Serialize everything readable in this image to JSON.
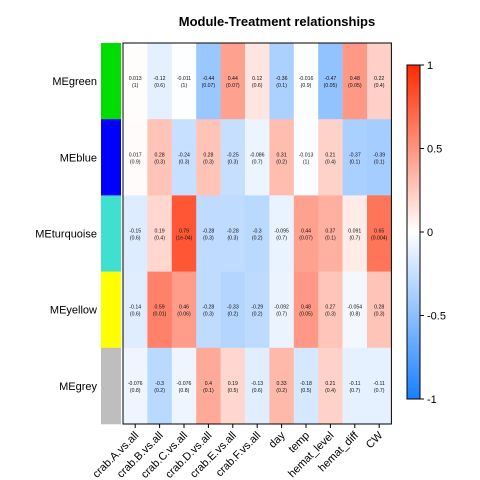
{
  "chart_data": {
    "type": "heatmap",
    "title": "Module-Treatment relationships",
    "rows": [
      "MEgreen",
      "MEblue",
      "MEturquoise",
      "MEyellow",
      "MEgrey"
    ],
    "row_colors": [
      "#00dd00",
      "#0000ff",
      "#40e0d0",
      "#ffff00",
      "#bebebe"
    ],
    "columns": [
      "crab.A.vs.all",
      "crab.B.vs.all",
      "crab.C.vs.all",
      "crab.D.vs.all",
      "crab.E.vs.all",
      "crab.F.vs.all",
      "day",
      "temp",
      "hemat_level",
      "hemat_diff",
      "CW"
    ],
    "values": [
      [
        0.013,
        -0.12,
        -0.011,
        -0.44,
        0.44,
        0.12,
        -0.36,
        -0.016,
        -0.47,
        0.48,
        0.22
      ],
      [
        0.017,
        0.28,
        -0.24,
        0.28,
        -0.25,
        -0.086,
        0.31,
        -0.013,
        0.21,
        -0.37,
        -0.39
      ],
      [
        -0.15,
        0.19,
        0.79,
        -0.28,
        -0.28,
        -0.3,
        -0.095,
        0.44,
        0.37,
        0.091,
        0.65
      ],
      [
        -0.14,
        0.59,
        0.46,
        -0.28,
        -0.33,
        -0.29,
        -0.092,
        0.48,
        0.27,
        -0.054,
        0.28
      ],
      [
        -0.076,
        -0.3,
        -0.076,
        0.4,
        0.19,
        -0.13,
        0.33,
        -0.18,
        0.21,
        -0.11,
        -0.11
      ]
    ],
    "pvalues": [
      [
        "1",
        "0.6",
        "1",
        "0.07",
        "0.07",
        "0.6",
        "0.1",
        "0.9",
        "0.05",
        "0.05",
        "0.4"
      ],
      [
        "0.9",
        "0.3",
        "0.3",
        "0.3",
        "0.3",
        "0.7",
        "0.2",
        "1",
        "0.4",
        "0.1",
        "0.1"
      ],
      [
        "0.6",
        "0.4",
        "1e-04",
        "0.3",
        "0.3",
        "0.2",
        "0.7",
        "0.07",
        "0.1",
        "0.7",
        "0.004"
      ],
      [
        "0.6",
        "0.01",
        "0.06",
        "0.3",
        "0.2",
        "0.2",
        "0.7",
        "0.05",
        "0.3",
        "0.8",
        "0.3"
      ],
      [
        "0.8",
        "0.2",
        "0.8",
        "0.1",
        "0.5",
        "0.6",
        "0.2",
        "0.5",
        "0.4",
        "0.7",
        "0.7"
      ]
    ],
    "colorbar": {
      "range": [
        -1,
        1
      ],
      "ticks": [
        "1",
        "0.5",
        "0",
        "-0.5",
        "-1"
      ],
      "low_color": "#1a7fff",
      "mid_color": "#ffffff",
      "high_color": "#ff2a00"
    },
    "xlabel": "",
    "ylabel": "",
    "legend": "right"
  }
}
